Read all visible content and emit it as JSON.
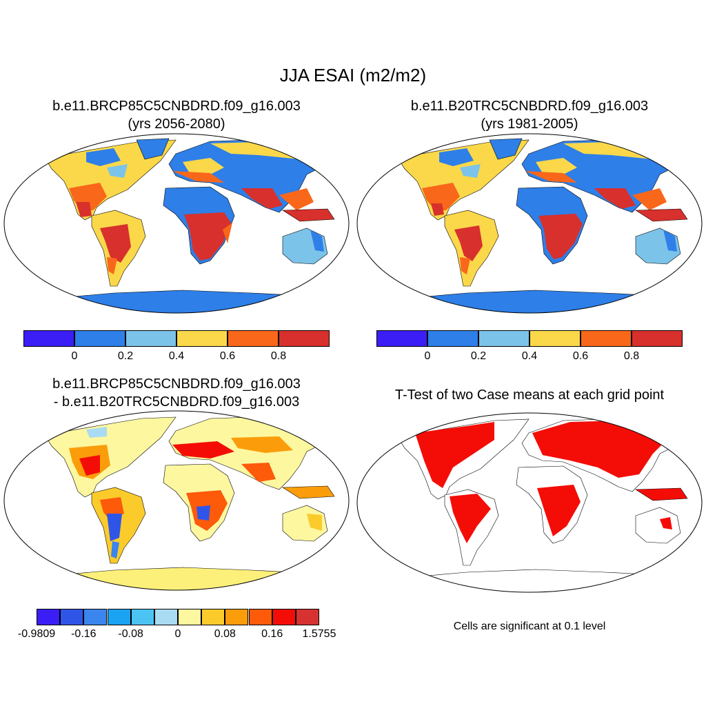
{
  "title": "JJA ESAI (m2/m2)",
  "panels": [
    {
      "title_line1": "b.e11.BRCP85C5CNBDRD.f09_g16.003",
      "title_line2": "(yrs 2056-2080)"
    },
    {
      "title_line1": "b.e11.B20TRC5CNBDRD.f09_g16.003",
      "title_line2": "(yrs 1981-2005)"
    },
    {
      "title_line1": "b.e11.BRCP85C5CNBDRD.f09_g16.003",
      "title_line2": "- b.e11.B20TRC5CNBDRD.f09_g16.003"
    },
    {
      "title_line1": "T-Test of two Case means at each grid point"
    }
  ],
  "colorbar_abs": {
    "colors": [
      "#3b1ef5",
      "#2e7fe8",
      "#7cc3ea",
      "#fad84a",
      "#f9671a",
      "#d8302c"
    ],
    "labels": [
      "0",
      "0.2",
      "0.4",
      "0.6",
      "0.8"
    ]
  },
  "colorbar_diff": {
    "colors": [
      "#3b1ef5",
      "#2f55e8",
      "#3a85ee",
      "#1aa3f2",
      "#4bc3f3",
      "#a9dcf2",
      "#fdf7a0",
      "#fbcb2c",
      "#fb9d0a",
      "#fd5a0a",
      "#f40d07",
      "#d63232"
    ],
    "labels": [
      "-0.9809",
      "-0.16",
      "-0.08",
      "0",
      "0.08",
      "0.16",
      "1.5755"
    ]
  },
  "significance_note": "Cells are significant at 0.1 level",
  "colors": {
    "ocean": "#ffffff",
    "antarctica_abs": "#2e7fe8",
    "antarctica_diff": "#fdf07a",
    "significant": "#f40d07"
  }
}
